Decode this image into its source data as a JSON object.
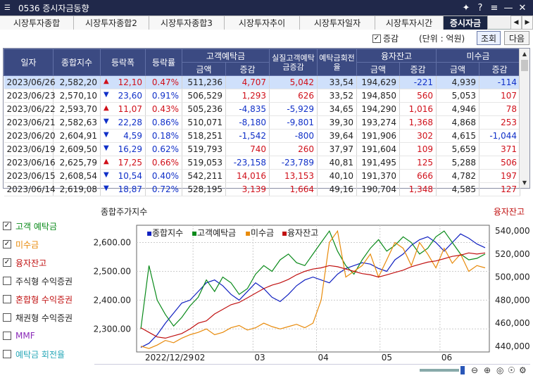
{
  "window": {
    "title": "0536 증시자금동향"
  },
  "tabs": [
    {
      "label": "시장투자종합",
      "w": 106
    },
    {
      "label": "시장투자종합2",
      "w": 108
    },
    {
      "label": "시장투자종합3",
      "w": 108
    },
    {
      "label": "시장투자추이",
      "w": 108
    },
    {
      "label": "시장투자일자",
      "w": 108
    },
    {
      "label": "시장투자시간",
      "w": 98
    },
    {
      "label": "증시자금",
      "w": 64,
      "active": true
    }
  ],
  "toolbar": {
    "change_label": "증감",
    "unit": "(단위 : 억원)",
    "search_label": "조회",
    "next_label": "다음"
  },
  "table": {
    "headers": {
      "date": "일자",
      "kospi": "종합지수",
      "chg": "등락폭",
      "rate": "등락률",
      "deposit": "고객예탁금",
      "real": "실질고객예탁금증감",
      "turnover": "예탁금회전율",
      "margin": "융자잔고",
      "receivable": "미수금",
      "amount": "금액",
      "change": "증감"
    },
    "rows": [
      {
        "date": "2023/06/26",
        "kospi": "2,582,20",
        "dir": "up",
        "chg": "12,10",
        "rate": "0.47%",
        "dep": "511,236",
        "depc": "4,707",
        "real": "5,042",
        "turn": "33,54",
        "mar": "194,629",
        "marc": "-221",
        "rec": "4,939",
        "recc": "-114"
      },
      {
        "date": "2023/06/23",
        "kospi": "2,570,10",
        "dir": "dn",
        "chg": "23,60",
        "rate": "0.91%",
        "dep": "506,529",
        "depc": "1,293",
        "real": "626",
        "turn": "33,52",
        "mar": "194,850",
        "marc": "560",
        "rec": "5,053",
        "recc": "107"
      },
      {
        "date": "2023/06/22",
        "kospi": "2,593,70",
        "dir": "up",
        "chg": "11,07",
        "rate": "0.43%",
        "dep": "505,236",
        "depc": "-4,835",
        "real": "-5,929",
        "turn": "34,65",
        "mar": "194,290",
        "marc": "1,016",
        "rec": "4,946",
        "recc": "78"
      },
      {
        "date": "2023/06/21",
        "kospi": "2,582,63",
        "dir": "dn",
        "chg": "22,28",
        "rate": "0.86%",
        "dep": "510,071",
        "depc": "-8,180",
        "real": "-9,801",
        "turn": "39,30",
        "mar": "193,274",
        "marc": "1,368",
        "rec": "4,868",
        "recc": "253"
      },
      {
        "date": "2023/06/20",
        "kospi": "2,604,91",
        "dir": "dn",
        "chg": "4,59",
        "rate": "0.18%",
        "dep": "518,251",
        "depc": "-1,542",
        "real": "-800",
        "turn": "39,64",
        "mar": "191,906",
        "marc": "302",
        "rec": "4,615",
        "recc": "-1,044"
      },
      {
        "date": "2023/06/19",
        "kospi": "2,609,50",
        "dir": "dn",
        "chg": "16,29",
        "rate": "0.62%",
        "dep": "519,793",
        "depc": "740",
        "real": "260",
        "turn": "37,97",
        "mar": "191,604",
        "marc": "109",
        "rec": "5,659",
        "recc": "371"
      },
      {
        "date": "2023/06/16",
        "kospi": "2,625,79",
        "dir": "up",
        "chg": "17,25",
        "rate": "0.66%",
        "dep": "519,053",
        "depc": "-23,158",
        "real": "-23,789",
        "turn": "40,81",
        "mar": "191,495",
        "marc": "125",
        "rec": "5,288",
        "recc": "506"
      },
      {
        "date": "2023/06/15",
        "kospi": "2,608,54",
        "dir": "dn",
        "chg": "10,54",
        "rate": "0.40%",
        "dep": "542,211",
        "depc": "14,016",
        "real": "13,153",
        "turn": "40,10",
        "mar": "191,370",
        "marc": "666",
        "rec": "4,782",
        "recc": "197"
      },
      {
        "date": "2023/06/14",
        "kospi": "2,619,08",
        "dir": "dn",
        "chg": "18,87",
        "rate": "0.72%",
        "dep": "528,195",
        "depc": "3,139",
        "real": "1,664",
        "turn": "49,16",
        "mar": "190,704",
        "marc": "1,348",
        "rec": "4,585",
        "recc": "127"
      }
    ]
  },
  "legend": [
    {
      "label": "고객 예탁금",
      "checked": true,
      "color": "#0a8a1a"
    },
    {
      "label": "미수금",
      "checked": true,
      "color": "#e88a0a"
    },
    {
      "label": "융자잔고",
      "checked": true,
      "color": "#c01010"
    },
    {
      "label": "주식형 수익증권",
      "checked": false,
      "color": "#222222"
    },
    {
      "label": "혼합형 수익증권",
      "checked": false,
      "color": "#c01010"
    },
    {
      "label": "채권형 수익증권",
      "checked": false,
      "color": "#222222"
    },
    {
      "label": "MMF",
      "checked": false,
      "color": "#8a2ab8"
    },
    {
      "label": "예탁금 회전율",
      "checked": false,
      "color": "#2aa8b8"
    }
  ],
  "chart_data": {
    "type": "line",
    "title": "종합주가지수",
    "right_title": "융자잔고",
    "x_labels": [
      "2022/12/29",
      "02",
      "03",
      "04",
      "05",
      "06"
    ],
    "left_ticks": [
      "2,600.00",
      "2,500.00",
      "2,400.00",
      "2,300.00"
    ],
    "right_ticks": [
      "540,000",
      "520,000",
      "500,000",
      "480,000",
      "460,000",
      "440,000"
    ],
    "left_range": [
      2220,
      2660
    ],
    "right_range": [
      435000,
      545000
    ],
    "series": [
      {
        "name": "종합지수",
        "color": "#1020c0",
        "axis": "left",
        "values": [
          2236,
          2250,
          2280,
          2320,
          2355,
          2390,
          2400,
          2430,
          2460,
          2470,
          2450,
          2420,
          2400,
          2430,
          2460,
          2440,
          2410,
          2395,
          2420,
          2450,
          2470,
          2480,
          2470,
          2460,
          2490,
          2510,
          2520,
          2530,
          2525,
          2510,
          2500,
          2540,
          2560,
          2590,
          2610,
          2620,
          2600,
          2570,
          2600,
          2630,
          2615,
          2595,
          2582
        ]
      },
      {
        "name": "고객예탁금",
        "color": "#0a8a1a",
        "axis": "left",
        "values": [
          2300,
          2520,
          2400,
          2350,
          2310,
          2340,
          2380,
          2410,
          2470,
          2430,
          2480,
          2460,
          2420,
          2440,
          2490,
          2520,
          2500,
          2540,
          2560,
          2530,
          2520,
          2560,
          2600,
          2640,
          2570,
          2520,
          2490,
          2540,
          2580,
          2610,
          2570,
          2590,
          2620,
          2600,
          2560,
          2580,
          2620,
          2640,
          2600,
          2560,
          2540,
          2545,
          2560
        ]
      },
      {
        "name": "미수금",
        "color": "#e88a0a",
        "axis": "right",
        "values": [
          440000,
          438000,
          441000,
          445000,
          443000,
          447000,
          450000,
          452000,
          455000,
          450000,
          452000,
          456000,
          458000,
          454000,
          456000,
          460000,
          457000,
          455000,
          457000,
          459000,
          456000,
          460000,
          480000,
          530000,
          540000,
          500000,
          505000,
          510000,
          520000,
          500000,
          515000,
          530000,
          525000,
          510000,
          530000,
          520000,
          508000,
          525000,
          512000,
          520000,
          505000,
          510000,
          508000
        ]
      },
      {
        "name": "융자잔고",
        "color": "#c01010",
        "axis": "right",
        "values": [
          456000,
          452000,
          448000,
          447000,
          449000,
          451000,
          455000,
          460000,
          462000,
          468000,
          472000,
          476000,
          478000,
          482000,
          486000,
          490000,
          493000,
          495000,
          498000,
          502000,
          505000,
          507000,
          508000,
          510000,
          509000,
          507000,
          505000,
          503000,
          502000,
          500000,
          502000,
          504000,
          506000,
          509000,
          511000,
          513000,
          514000,
          516000,
          518000,
          519000,
          521000,
          520000,
          521000
        ]
      }
    ]
  }
}
